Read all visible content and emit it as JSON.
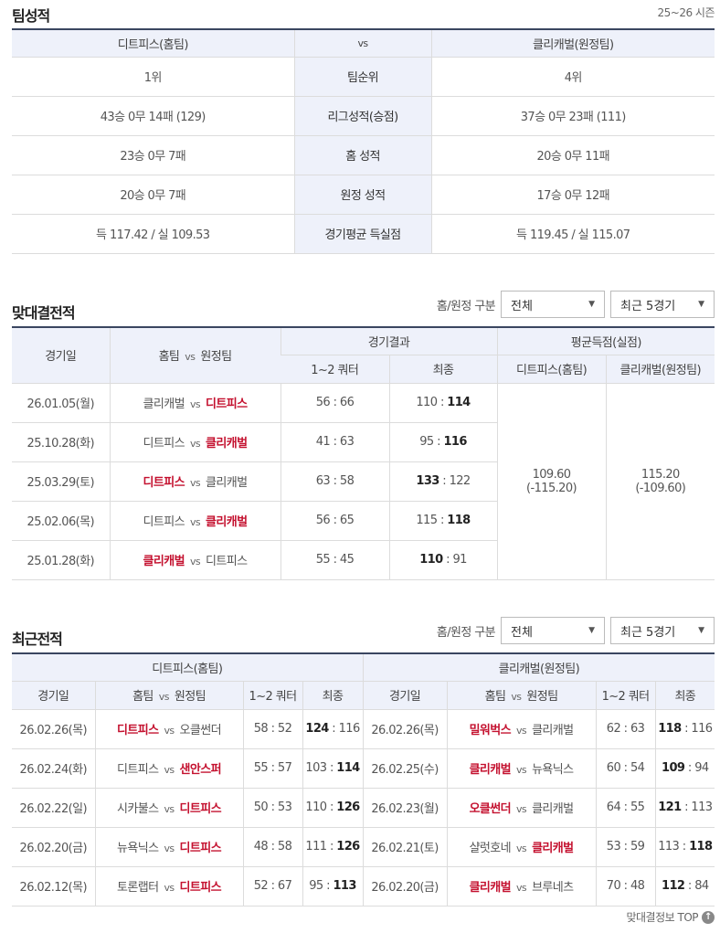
{
  "team_stats": {
    "title": "팀성적",
    "season": "25~26 시즌",
    "home_header": "디트피스(홈팀)",
    "vs": "vs",
    "away_header": "클리캐벌(원정팀)",
    "rows": [
      {
        "label": "팀순위",
        "home": "1위",
        "away": "4위"
      },
      {
        "label": "리그성적(승점)",
        "home": "43승 0무 14패 (129)",
        "away": "37승 0무 23패 (111)"
      },
      {
        "label": "홈 성적",
        "home": "23승 0무 7패",
        "away": "20승 0무 11패"
      },
      {
        "label": "원정 성적",
        "home": "20승 0무 7패",
        "away": "17승 0무 12패"
      },
      {
        "label": "경기평균 득실점",
        "home": "득 117.42 / 실 109.53",
        "away": "득 119.45 / 실 115.07"
      }
    ]
  },
  "h2h": {
    "title": "맞대결전적",
    "filter_label": "홈/원정 구분",
    "filter_value": "전체",
    "range_value": "최근 5경기",
    "headers": {
      "date": "경기일",
      "matchup_home": "홈팀",
      "matchup_vs": "vs",
      "matchup_away": "원정팀",
      "result": "경기결과",
      "half": "1~2 쿼터",
      "final": "최종",
      "avg": "평균득점(실점)",
      "avg_home": "디트피스(홈팀)",
      "avg_away": "클리캐벌(원정팀)"
    },
    "avg_home": "109.60",
    "avg_home_against": "(-115.20)",
    "avg_away": "115.20",
    "avg_away_against": "(-109.60)",
    "rows": [
      {
        "date": "26.01.05(월)",
        "home": "클리캐벌",
        "away": "디트피스",
        "half": "56 : 66",
        "home_score": "110",
        "away_score": "114",
        "winner": "away"
      },
      {
        "date": "25.10.28(화)",
        "home": "디트피스",
        "away": "클리캐벌",
        "half": "41 : 63",
        "home_score": "95",
        "away_score": "116",
        "winner": "away"
      },
      {
        "date": "25.03.29(토)",
        "home": "디트피스",
        "away": "클리캐벌",
        "half": "63 : 58",
        "home_score": "133",
        "away_score": "122",
        "winner": "home"
      },
      {
        "date": "25.02.06(목)",
        "home": "디트피스",
        "away": "클리캐벌",
        "half": "56 : 65",
        "home_score": "115",
        "away_score": "118",
        "winner": "away"
      },
      {
        "date": "25.01.28(화)",
        "home": "클리캐벌",
        "away": "디트피스",
        "half": "55 : 45",
        "home_score": "110",
        "away_score": "91",
        "winner": "home"
      }
    ]
  },
  "recent": {
    "title": "최근전적",
    "filter_label": "홈/원정 구분",
    "filter_value": "전체",
    "range_value": "최근 5경기",
    "left_header": "디트피스(홈팀)",
    "right_header": "클리캐벌(원정팀)",
    "headers": {
      "date": "경기일",
      "matchup_home": "홈팀",
      "matchup_vs": "vs",
      "matchup_away": "원정팀",
      "half": "1~2 쿼터",
      "final": "최종"
    },
    "left_rows": [
      {
        "date": "26.02.26(목)",
        "home": "디트피스",
        "away": "오클썬더",
        "half": "58 : 52",
        "home_score": "124",
        "away_score": "116",
        "winner": "home"
      },
      {
        "date": "26.02.24(화)",
        "home": "디트피스",
        "away": "샌안스퍼",
        "half": "55 : 57",
        "home_score": "103",
        "away_score": "114",
        "winner": "away"
      },
      {
        "date": "26.02.22(일)",
        "home": "시카불스",
        "away": "디트피스",
        "half": "50 : 53",
        "home_score": "110",
        "away_score": "126",
        "winner": "away"
      },
      {
        "date": "26.02.20(금)",
        "home": "뉴욕닉스",
        "away": "디트피스",
        "half": "48 : 58",
        "home_score": "111",
        "away_score": "126",
        "winner": "away"
      },
      {
        "date": "26.02.12(목)",
        "home": "토론랩터",
        "away": "디트피스",
        "half": "52 : 67",
        "home_score": "95",
        "away_score": "113",
        "winner": "away"
      }
    ],
    "right_rows": [
      {
        "date": "26.02.26(목)",
        "home": "밀워벅스",
        "away": "클리캐벌",
        "half": "62 : 63",
        "home_score": "118",
        "away_score": "116",
        "winner": "home"
      },
      {
        "date": "26.02.25(수)",
        "home": "클리캐벌",
        "away": "뉴욕닉스",
        "half": "60 : 54",
        "home_score": "109",
        "away_score": "94",
        "winner": "home"
      },
      {
        "date": "26.02.23(월)",
        "home": "오클썬더",
        "away": "클리캐벌",
        "half": "64 : 55",
        "home_score": "121",
        "away_score": "113",
        "winner": "home"
      },
      {
        "date": "26.02.21(토)",
        "home": "샬럿호네",
        "away": "클리캐벌",
        "half": "53 : 59",
        "home_score": "113",
        "away_score": "118",
        "winner": "away"
      },
      {
        "date": "26.02.20(금)",
        "home": "클리캐벌",
        "away": "브루네츠",
        "half": "70 : 48",
        "home_score": "112",
        "away_score": "84",
        "winner": "home"
      }
    ]
  },
  "footer": {
    "top_label": "맞대결정보 TOP",
    "top_icon": "arrow-up-circle-icon"
  },
  "colors": {
    "winner": "#c4112f",
    "header_bg": "#eef1fa",
    "table_border": "#3a4660"
  }
}
